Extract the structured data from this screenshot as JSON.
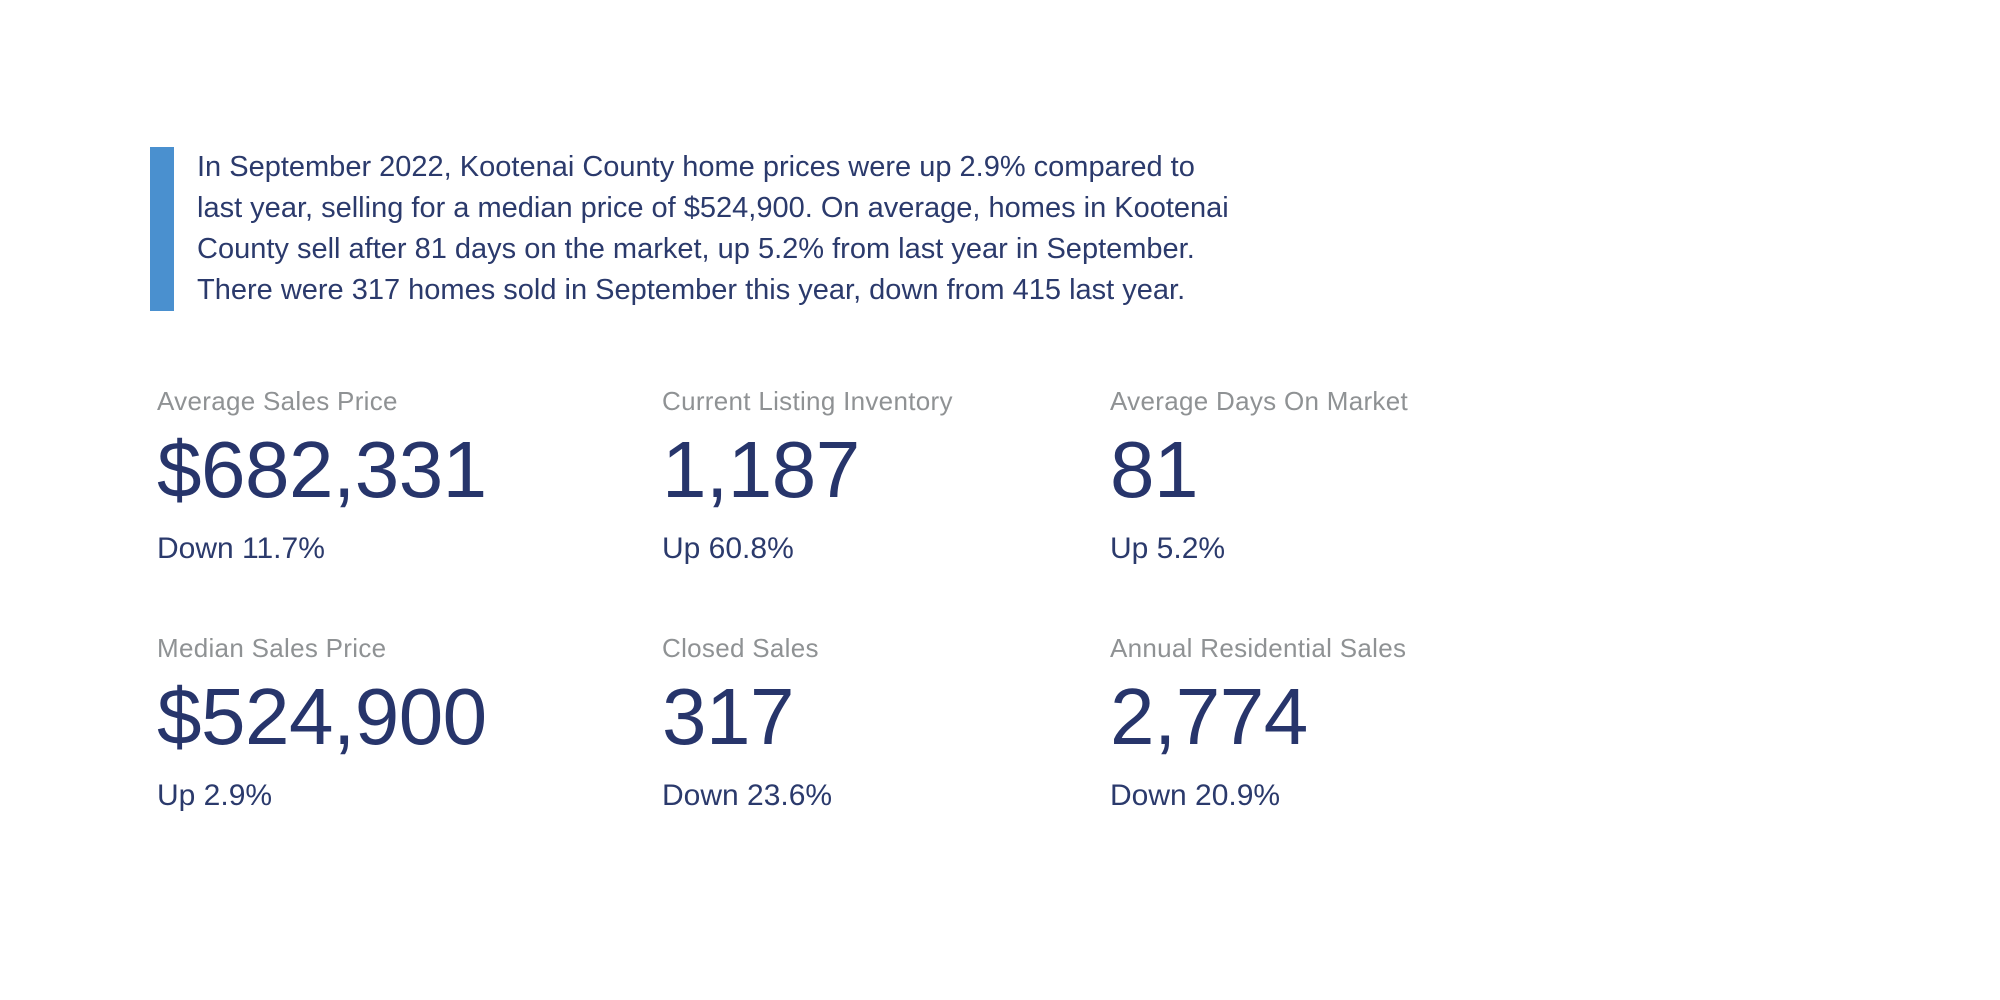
{
  "page": {
    "background_color": "#ffffff"
  },
  "colors": {
    "accent_bar_blue": "#4a90cf",
    "navy_text": "#2b3a6c",
    "stat_value_navy": "#27356b",
    "label_gray": "#8f9294"
  },
  "summary": {
    "full_text": "In September 2022, Kootenai County home prices were up 2.9% compared to last year, selling for a median price of $524,900. On average, homes in Kootenai County sell after 81 days on the market, up 5.2% from last year in September. There were 317 homes sold in September this year, down from 415 last year.",
    "lines": [
      "In September 2022, Kootenai County home prices were up 2.9% compared to",
      "last year, selling for a median price of $524,900. On average, homes in Kootenai",
      "County sell after 81 days on the market, up 5.2% from last year in September.",
      "There were 317 homes sold in September this year, down from 415 last year."
    ]
  },
  "stats": {
    "items": [
      {
        "label": "Average Sales Price",
        "value": "$682,331",
        "change": "Down 11.7%"
      },
      {
        "label": "Current Listing Inventory",
        "value": "1,187",
        "change": "Up 60.8%"
      },
      {
        "label": "Average Days On Market",
        "value": "81",
        "change": "Up 5.2%"
      },
      {
        "label": "Median Sales Price",
        "value": "$524,900",
        "change": "Up 2.9%"
      },
      {
        "label": "Closed Sales",
        "value": "317",
        "change": "Down 23.6%"
      },
      {
        "label": "Annual Residential Sales",
        "value": "2,774",
        "change": "Down 20.9%"
      }
    ]
  }
}
